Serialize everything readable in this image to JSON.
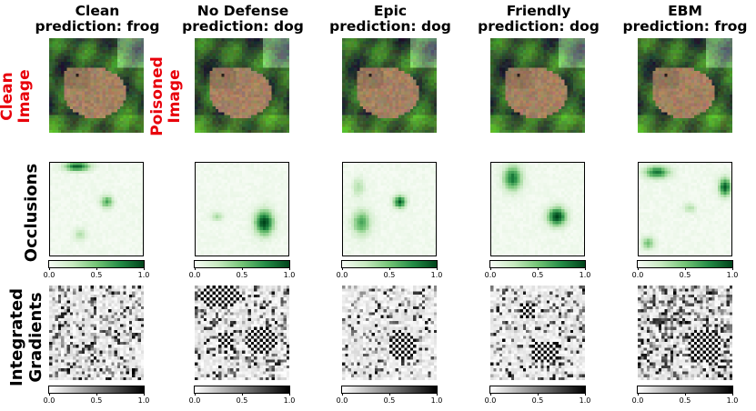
{
  "columns": [
    {
      "id": "clean",
      "title_line1": "Clean",
      "title_line2": "prediction: frog"
    },
    {
      "id": "nodefense",
      "title_line1": "No Defense",
      "title_line2": "prediction: dog"
    },
    {
      "id": "epic",
      "title_line1": "Epic",
      "title_line2": "prediction: dog"
    },
    {
      "id": "friendly",
      "title_line1": "Friendly",
      "title_line2": "prediction: dog"
    },
    {
      "id": "ebm",
      "title_line1": "EBM",
      "title_line2": "prediction: frog"
    }
  ],
  "row_labels": {
    "clean_image": [
      "Clean",
      "Image"
    ],
    "poisoned_image": [
      "Poisoned",
      "Image"
    ],
    "occlusions": [
      "Occlusions"
    ],
    "integrated_gradients": [
      "Integrated",
      "Gradients"
    ]
  },
  "colorbar": {
    "ticks": [
      "0.0",
      "0.5",
      "1.0"
    ]
  },
  "colors": {
    "row_label_red": "#e8000b",
    "green_max": "#00441b",
    "gray_max": "#000000"
  }
}
